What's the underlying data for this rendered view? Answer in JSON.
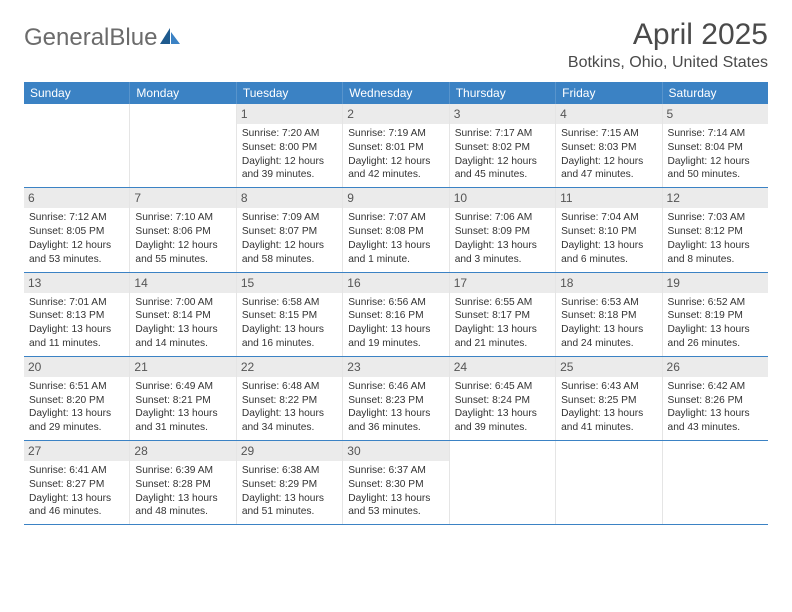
{
  "logo": {
    "first": "General",
    "second": "Blue"
  },
  "title": "April 2025",
  "location": "Botkins, Ohio, United States",
  "colors": {
    "header_bg": "#3b82c4",
    "header_text": "#ffffff",
    "daynum_bg": "#ebebeb",
    "daynum_text": "#555555",
    "border": "#3b82c4",
    "body_text": "#333333",
    "title_text": "#4a4a4a",
    "logo_text": "#6b6b6b"
  },
  "weekdays": [
    "Sunday",
    "Monday",
    "Tuesday",
    "Wednesday",
    "Thursday",
    "Friday",
    "Saturday"
  ],
  "weeks": [
    [
      {
        "empty": true
      },
      {
        "empty": true
      },
      {
        "day": "1",
        "sunrise": "Sunrise: 7:20 AM",
        "sunset": "Sunset: 8:00 PM",
        "daylight1": "Daylight: 12 hours",
        "daylight2": "and 39 minutes."
      },
      {
        "day": "2",
        "sunrise": "Sunrise: 7:19 AM",
        "sunset": "Sunset: 8:01 PM",
        "daylight1": "Daylight: 12 hours",
        "daylight2": "and 42 minutes."
      },
      {
        "day": "3",
        "sunrise": "Sunrise: 7:17 AM",
        "sunset": "Sunset: 8:02 PM",
        "daylight1": "Daylight: 12 hours",
        "daylight2": "and 45 minutes."
      },
      {
        "day": "4",
        "sunrise": "Sunrise: 7:15 AM",
        "sunset": "Sunset: 8:03 PM",
        "daylight1": "Daylight: 12 hours",
        "daylight2": "and 47 minutes."
      },
      {
        "day": "5",
        "sunrise": "Sunrise: 7:14 AM",
        "sunset": "Sunset: 8:04 PM",
        "daylight1": "Daylight: 12 hours",
        "daylight2": "and 50 minutes."
      }
    ],
    [
      {
        "day": "6",
        "sunrise": "Sunrise: 7:12 AM",
        "sunset": "Sunset: 8:05 PM",
        "daylight1": "Daylight: 12 hours",
        "daylight2": "and 53 minutes."
      },
      {
        "day": "7",
        "sunrise": "Sunrise: 7:10 AM",
        "sunset": "Sunset: 8:06 PM",
        "daylight1": "Daylight: 12 hours",
        "daylight2": "and 55 minutes."
      },
      {
        "day": "8",
        "sunrise": "Sunrise: 7:09 AM",
        "sunset": "Sunset: 8:07 PM",
        "daylight1": "Daylight: 12 hours",
        "daylight2": "and 58 minutes."
      },
      {
        "day": "9",
        "sunrise": "Sunrise: 7:07 AM",
        "sunset": "Sunset: 8:08 PM",
        "daylight1": "Daylight: 13 hours",
        "daylight2": "and 1 minute."
      },
      {
        "day": "10",
        "sunrise": "Sunrise: 7:06 AM",
        "sunset": "Sunset: 8:09 PM",
        "daylight1": "Daylight: 13 hours",
        "daylight2": "and 3 minutes."
      },
      {
        "day": "11",
        "sunrise": "Sunrise: 7:04 AM",
        "sunset": "Sunset: 8:10 PM",
        "daylight1": "Daylight: 13 hours",
        "daylight2": "and 6 minutes."
      },
      {
        "day": "12",
        "sunrise": "Sunrise: 7:03 AM",
        "sunset": "Sunset: 8:12 PM",
        "daylight1": "Daylight: 13 hours",
        "daylight2": "and 8 minutes."
      }
    ],
    [
      {
        "day": "13",
        "sunrise": "Sunrise: 7:01 AM",
        "sunset": "Sunset: 8:13 PM",
        "daylight1": "Daylight: 13 hours",
        "daylight2": "and 11 minutes."
      },
      {
        "day": "14",
        "sunrise": "Sunrise: 7:00 AM",
        "sunset": "Sunset: 8:14 PM",
        "daylight1": "Daylight: 13 hours",
        "daylight2": "and 14 minutes."
      },
      {
        "day": "15",
        "sunrise": "Sunrise: 6:58 AM",
        "sunset": "Sunset: 8:15 PM",
        "daylight1": "Daylight: 13 hours",
        "daylight2": "and 16 minutes."
      },
      {
        "day": "16",
        "sunrise": "Sunrise: 6:56 AM",
        "sunset": "Sunset: 8:16 PM",
        "daylight1": "Daylight: 13 hours",
        "daylight2": "and 19 minutes."
      },
      {
        "day": "17",
        "sunrise": "Sunrise: 6:55 AM",
        "sunset": "Sunset: 8:17 PM",
        "daylight1": "Daylight: 13 hours",
        "daylight2": "and 21 minutes."
      },
      {
        "day": "18",
        "sunrise": "Sunrise: 6:53 AM",
        "sunset": "Sunset: 8:18 PM",
        "daylight1": "Daylight: 13 hours",
        "daylight2": "and 24 minutes."
      },
      {
        "day": "19",
        "sunrise": "Sunrise: 6:52 AM",
        "sunset": "Sunset: 8:19 PM",
        "daylight1": "Daylight: 13 hours",
        "daylight2": "and 26 minutes."
      }
    ],
    [
      {
        "day": "20",
        "sunrise": "Sunrise: 6:51 AM",
        "sunset": "Sunset: 8:20 PM",
        "daylight1": "Daylight: 13 hours",
        "daylight2": "and 29 minutes."
      },
      {
        "day": "21",
        "sunrise": "Sunrise: 6:49 AM",
        "sunset": "Sunset: 8:21 PM",
        "daylight1": "Daylight: 13 hours",
        "daylight2": "and 31 minutes."
      },
      {
        "day": "22",
        "sunrise": "Sunrise: 6:48 AM",
        "sunset": "Sunset: 8:22 PM",
        "daylight1": "Daylight: 13 hours",
        "daylight2": "and 34 minutes."
      },
      {
        "day": "23",
        "sunrise": "Sunrise: 6:46 AM",
        "sunset": "Sunset: 8:23 PM",
        "daylight1": "Daylight: 13 hours",
        "daylight2": "and 36 minutes."
      },
      {
        "day": "24",
        "sunrise": "Sunrise: 6:45 AM",
        "sunset": "Sunset: 8:24 PM",
        "daylight1": "Daylight: 13 hours",
        "daylight2": "and 39 minutes."
      },
      {
        "day": "25",
        "sunrise": "Sunrise: 6:43 AM",
        "sunset": "Sunset: 8:25 PM",
        "daylight1": "Daylight: 13 hours",
        "daylight2": "and 41 minutes."
      },
      {
        "day": "26",
        "sunrise": "Sunrise: 6:42 AM",
        "sunset": "Sunset: 8:26 PM",
        "daylight1": "Daylight: 13 hours",
        "daylight2": "and 43 minutes."
      }
    ],
    [
      {
        "day": "27",
        "sunrise": "Sunrise: 6:41 AM",
        "sunset": "Sunset: 8:27 PM",
        "daylight1": "Daylight: 13 hours",
        "daylight2": "and 46 minutes."
      },
      {
        "day": "28",
        "sunrise": "Sunrise: 6:39 AM",
        "sunset": "Sunset: 8:28 PM",
        "daylight1": "Daylight: 13 hours",
        "daylight2": "and 48 minutes."
      },
      {
        "day": "29",
        "sunrise": "Sunrise: 6:38 AM",
        "sunset": "Sunset: 8:29 PM",
        "daylight1": "Daylight: 13 hours",
        "daylight2": "and 51 minutes."
      },
      {
        "day": "30",
        "sunrise": "Sunrise: 6:37 AM",
        "sunset": "Sunset: 8:30 PM",
        "daylight1": "Daylight: 13 hours",
        "daylight2": "and 53 minutes."
      },
      {
        "empty": true
      },
      {
        "empty": true
      },
      {
        "empty": true
      }
    ]
  ]
}
